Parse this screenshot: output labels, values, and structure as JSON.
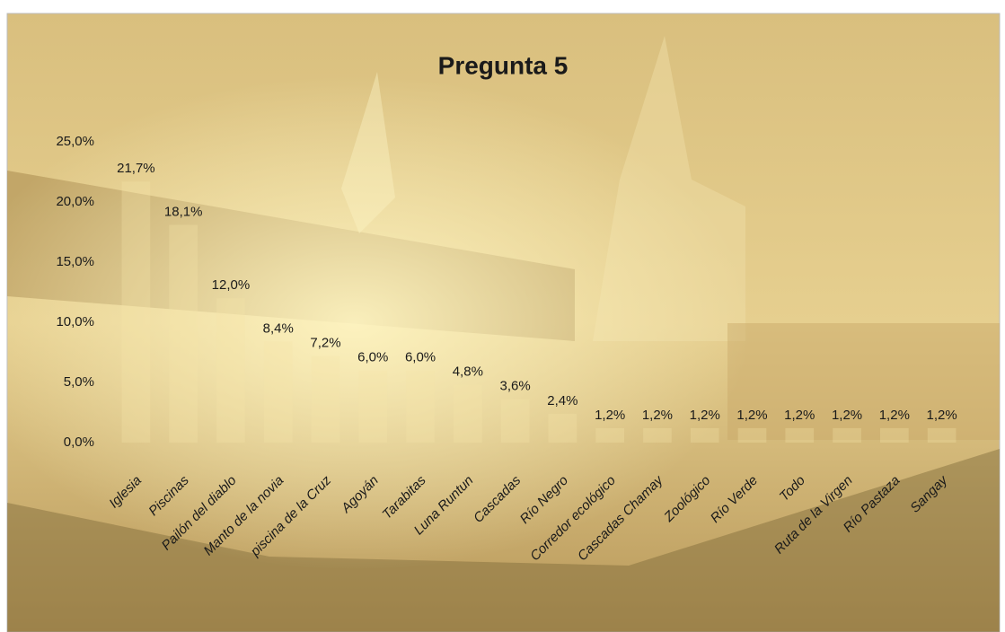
{
  "chart_data": {
    "type": "bar",
    "title": "Pregunta 5",
    "categories": [
      "Iglesia",
      "Piscinas",
      "Pailón del diablo",
      "Manto de la novia",
      "piscina de la Cruz",
      "Agoyán",
      "Tarabitas",
      "Luna Runtun",
      "Cascadas",
      "Río Negro",
      "Corredor ecológico",
      "Cascadas Chamay",
      "Zoológico",
      "Río Verde",
      "Todo",
      "Ruta de la Virgen",
      "Río Pastaza",
      "Sangay"
    ],
    "values": [
      21.7,
      18.1,
      12.0,
      8.4,
      7.2,
      6.0,
      6.0,
      4.8,
      3.6,
      2.4,
      1.2,
      1.2,
      1.2,
      1.2,
      1.2,
      1.2,
      1.2,
      1.2
    ],
    "value_labels": [
      "21,7%",
      "18,1%",
      "12,0%",
      "8,4%",
      "7,2%",
      "6,0%",
      "6,0%",
      "4,8%",
      "3,6%",
      "2,4%",
      "1,2%",
      "1,2%",
      "1,2%",
      "1,2%",
      "1,2%",
      "1,2%",
      "1,2%",
      "1,2%"
    ],
    "color": "#f4e6a8",
    "ylim": [
      0,
      25
    ],
    "yticks": [
      {
        "value": 0,
        "label": "0,0%"
      },
      {
        "value": 5,
        "label": "5,0%"
      },
      {
        "value": 10,
        "label": "10,0%"
      },
      {
        "value": 15,
        "label": "15,0%"
      },
      {
        "value": 20,
        "label": "20,0%"
      },
      {
        "value": 25,
        "label": "25,0%"
      }
    ],
    "grid": false
  }
}
